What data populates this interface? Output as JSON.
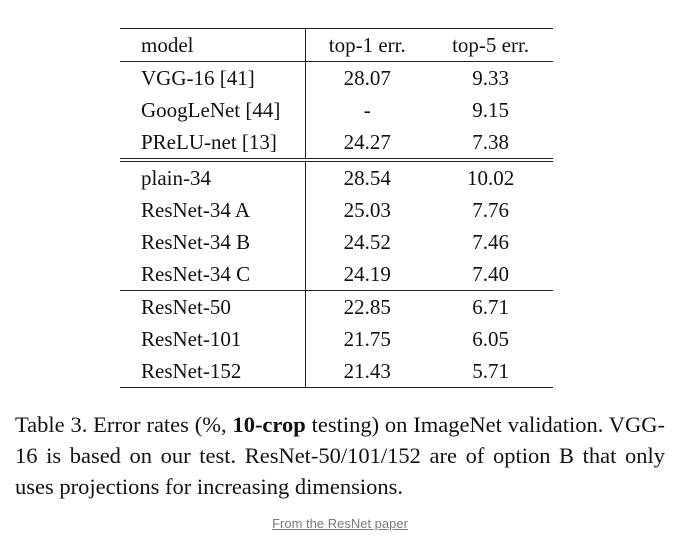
{
  "table": {
    "headers": [
      "model",
      "top-1 err.",
      "top-5 err."
    ],
    "sections": [
      [
        {
          "model": "VGG-16 [41]",
          "top1": "28.07",
          "top5": "9.33"
        },
        {
          "model": "GoogLeNet [44]",
          "top1": "-",
          "top5": "9.15"
        },
        {
          "model": "PReLU-net [13]",
          "top1": "24.27",
          "top5": "7.38"
        }
      ],
      [
        {
          "model": "plain-34",
          "top1": "28.54",
          "top5": "10.02"
        },
        {
          "model": "ResNet-34 A",
          "top1": "25.03",
          "top5": "7.76"
        },
        {
          "model": "ResNet-34 B",
          "top1": "24.52",
          "top5": "7.46"
        },
        {
          "model": "ResNet-34 C",
          "top1": "24.19",
          "top5": "7.40"
        }
      ],
      [
        {
          "model": "ResNet-50",
          "top1": "22.85",
          "top5": "6.71"
        },
        {
          "model": "ResNet-101",
          "top1": "21.75",
          "top5": "6.05"
        },
        {
          "model": "ResNet-152",
          "top1": "21.43",
          "top5": "5.71"
        }
      ]
    ]
  },
  "caption": {
    "part1": "Table 3. Error rates (%, ",
    "bold": "10-crop",
    "part2": " testing) on ImageNet validation. VGG-16 is based on our test. ResNet-50/101/152 are of option B that only uses projections for increasing dimensions."
  },
  "source_link": "From the ResNet paper"
}
